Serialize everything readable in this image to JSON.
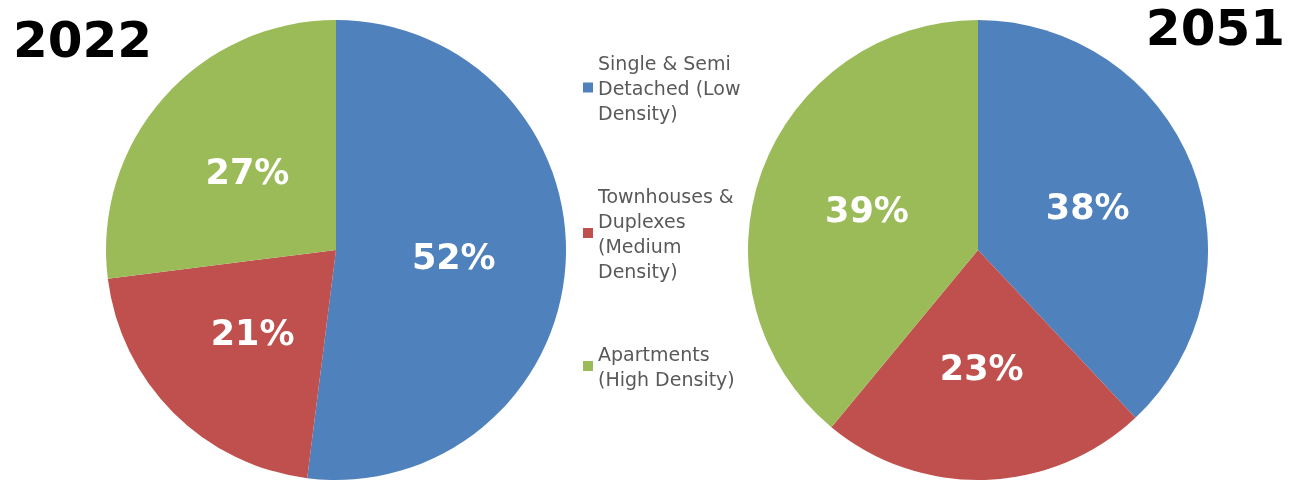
{
  "chart_data": {
    "type": "pie",
    "categories": [
      "Single & Semi Detached (Low Density)",
      "Townhouses & Duplexes (Medium Density)",
      "Apartments (High Density)"
    ],
    "colors": [
      "#4f81bd",
      "#c0504d",
      "#9bbb59"
    ],
    "legend": "center",
    "series": [
      {
        "name": "2022",
        "values": [
          52,
          21,
          27
        ],
        "value_labels": [
          "52%",
          "21%",
          "27%"
        ]
      },
      {
        "name": "2051",
        "values": [
          38,
          23,
          39
        ],
        "value_labels": [
          "38%",
          "23%",
          "39%"
        ]
      }
    ]
  }
}
